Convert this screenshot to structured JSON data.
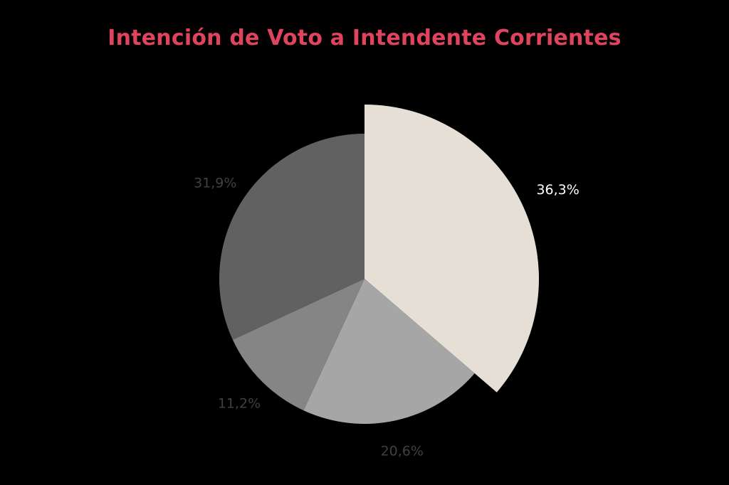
{
  "title": "Intención de Voto a Intendente Corrientes",
  "colors": {
    "background": "#000000",
    "title": "#e0435d"
  },
  "chart_data": {
    "type": "pie",
    "title": "Intención de Voto a Intendente Corrientes",
    "start": "12 o'clock",
    "direction": "clockwise",
    "legend": "none",
    "slices": [
      {
        "value": 36.3,
        "label": "36,3%",
        "color": "#e6dfd5",
        "label_color": "#ffffff",
        "exploded": true
      },
      {
        "value": 20.6,
        "label": "20,6%",
        "color": "#a6a6a6",
        "label_color": "#404040",
        "exploded": false
      },
      {
        "value": 11.2,
        "label": "11,2%",
        "color": "#858585",
        "label_color": "#404040",
        "exploded": false
      },
      {
        "value": 31.9,
        "label": "31,9%",
        "color": "#616161",
        "label_color": "#404040",
        "exploded": false
      }
    ]
  }
}
